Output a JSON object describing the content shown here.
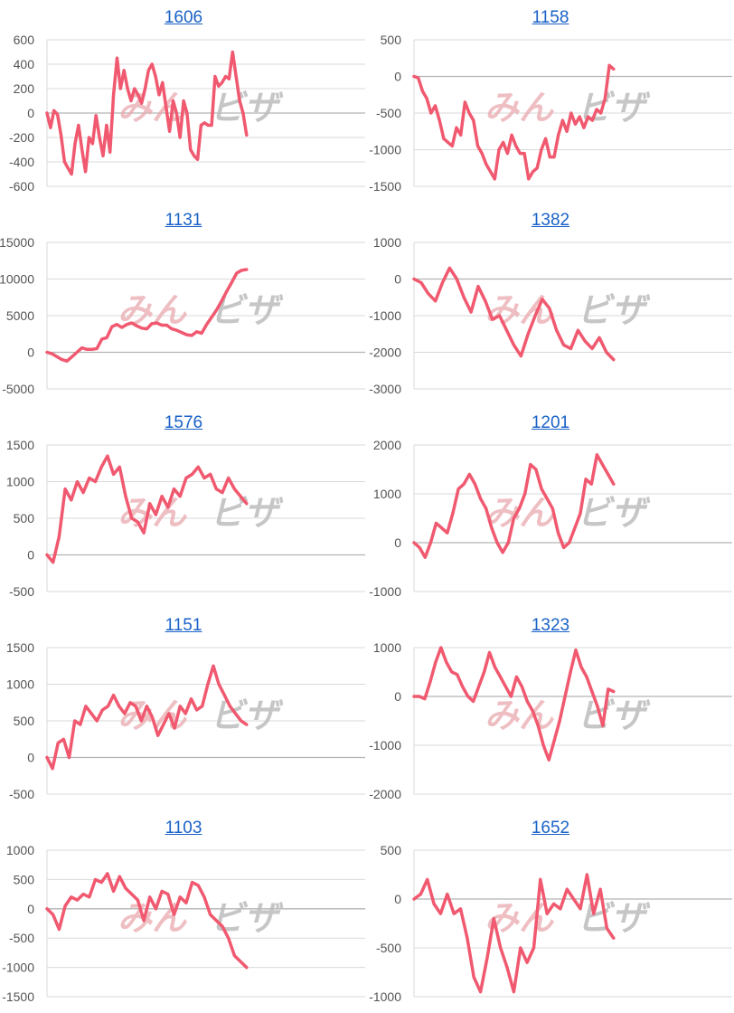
{
  "watermark": {
    "part1": "みん",
    "part2": "ビザ"
  },
  "colors": {
    "series": "#f0596f",
    "grid": "#d9d9d9",
    "zero": "#b3b3b3",
    "title": "#1a62c7",
    "tick": "#555555"
  },
  "chart_data": [
    {
      "type": "line",
      "title": "1606",
      "yticks": [
        600,
        400,
        200,
        0,
        -200,
        -400,
        -600
      ],
      "ylim": [
        -600,
        600
      ],
      "x_extent": 96,
      "values": [
        0,
        -120,
        20,
        -10,
        -180,
        -400,
        -450,
        -500,
        -250,
        -100,
        -300,
        -480,
        -200,
        -250,
        -20,
        -200,
        -350,
        -100,
        -320,
        150,
        450,
        200,
        350,
        200,
        100,
        200,
        150,
        80,
        200,
        350,
        400,
        300,
        150,
        250,
        50,
        -150,
        100,
        0,
        -200,
        100,
        0,
        -300,
        -350,
        -380,
        -100,
        -80,
        -100,
        -100,
        300,
        220,
        250,
        300,
        280,
        500,
        300,
        100,
        0,
        -180
      ]
    },
    {
      "type": "line",
      "title": "1158",
      "yticks": [
        500,
        0,
        -500,
        -1000,
        -1500
      ],
      "ylim": [
        -1500,
        500
      ],
      "x_extent": 96,
      "values": [
        0,
        -20,
        -200,
        -300,
        -500,
        -400,
        -600,
        -850,
        -900,
        -950,
        -700,
        -800,
        -350,
        -500,
        -600,
        -950,
        -1050,
        -1200,
        -1300,
        -1400,
        -1000,
        -900,
        -1050,
        -800,
        -950,
        -1050,
        -1050,
        -1400,
        -1300,
        -1250,
        -1000,
        -850,
        -1100,
        -1100,
        -800,
        -600,
        -750,
        -500,
        -650,
        -550,
        -700,
        -550,
        -600,
        -450,
        -500,
        -300,
        150,
        100
      ]
    },
    {
      "type": "line",
      "title": "1131",
      "yticks": [
        15000,
        10000,
        5000,
        0,
        -5000
      ],
      "ylim": [
        -5000,
        15000
      ],
      "x_extent": 96,
      "values": [
        0,
        -200,
        -600,
        -1000,
        -1200,
        -600,
        0,
        600,
        400,
        400,
        500,
        1800,
        2000,
        3500,
        3800,
        3400,
        3800,
        4000,
        3600,
        3300,
        3200,
        3900,
        4000,
        3700,
        3700,
        3200,
        3000,
        2700,
        2400,
        2300,
        2800,
        2600,
        3800,
        4800,
        5800,
        7000,
        8300,
        9500,
        10800,
        11200,
        11300
      ]
    },
    {
      "type": "line",
      "title": "1382",
      "yticks": [
        1000,
        0,
        -1000,
        -2000,
        -3000
      ],
      "ylim": [
        -3000,
        1000
      ],
      "x_extent": 96,
      "values": [
        0,
        -100,
        -400,
        -600,
        -100,
        300,
        0,
        -500,
        -900,
        -200,
        -600,
        -1100,
        -1000,
        -1400,
        -1800,
        -2100,
        -1500,
        -1000,
        -550,
        -800,
        -1400,
        -1800,
        -1900,
        -1400,
        -1700,
        -1900,
        -1600,
        -2000,
        -2200
      ]
    },
    {
      "type": "line",
      "title": "1576",
      "yticks": [
        1500,
        1000,
        500,
        0,
        -500
      ],
      "ylim": [
        -500,
        1500
      ],
      "x_extent": 96,
      "values": [
        0,
        -100,
        250,
        900,
        750,
        1000,
        850,
        1050,
        1000,
        1200,
        1350,
        1100,
        1200,
        800,
        500,
        450,
        300,
        700,
        550,
        800,
        650,
        900,
        800,
        1050,
        1100,
        1200,
        1050,
        1100,
        900,
        850,
        1050,
        900,
        800,
        700
      ]
    },
    {
      "type": "line",
      "title": "1201",
      "yticks": [
        2000,
        1000,
        0,
        -1000
      ],
      "ylim": [
        -1000,
        2000
      ],
      "x_extent": 96,
      "values": [
        0,
        -100,
        -300,
        0,
        400,
        300,
        200,
        600,
        1100,
        1200,
        1400,
        1200,
        900,
        700,
        300,
        0,
        -200,
        0,
        500,
        700,
        1000,
        1600,
        1500,
        1100,
        900,
        700,
        200,
        -100,
        0,
        300,
        600,
        1300,
        1200,
        1800,
        1600,
        1400,
        1200
      ]
    },
    {
      "type": "line",
      "title": "1151",
      "yticks": [
        1500,
        1000,
        500,
        0,
        -500
      ],
      "ylim": [
        -500,
        1500
      ],
      "x_extent": 96,
      "values": [
        0,
        -150,
        200,
        250,
        0,
        500,
        450,
        700,
        600,
        500,
        650,
        700,
        850,
        700,
        600,
        750,
        700,
        500,
        700,
        550,
        300,
        450,
        600,
        400,
        700,
        600,
        800,
        650,
        700,
        1000,
        1250,
        1000,
        850,
        700,
        600,
        500,
        450
      ]
    },
    {
      "type": "line",
      "title": "1323",
      "yticks": [
        1000,
        0,
        -1000,
        -2000
      ],
      "ylim": [
        -2000,
        1000
      ],
      "x_extent": 96,
      "values": [
        0,
        0,
        -50,
        300,
        700,
        1000,
        700,
        500,
        450,
        200,
        0,
        -100,
        200,
        500,
        900,
        600,
        400,
        200,
        0,
        400,
        200,
        -100,
        -300,
        -600,
        -1000,
        -1300,
        -900,
        -500,
        0,
        500,
        950,
        600,
        400,
        100,
        -200,
        -600,
        150,
        100
      ]
    },
    {
      "type": "line",
      "title": "1103",
      "yticks": [
        1000,
        500,
        0,
        -500,
        -1000,
        -1500
      ],
      "ylim": [
        -1500,
        1000
      ],
      "x_extent": 96,
      "values": [
        0,
        -100,
        -350,
        50,
        200,
        150,
        250,
        200,
        500,
        450,
        600,
        300,
        550,
        350,
        250,
        150,
        -200,
        200,
        0,
        300,
        250,
        -100,
        200,
        100,
        450,
        400,
        200,
        -100,
        -200,
        -300,
        -500,
        -800,
        -900,
        -1000
      ]
    },
    {
      "type": "line",
      "title": "1652",
      "yticks": [
        500,
        0,
        -500,
        -1000
      ],
      "ylim": [
        -1000,
        500
      ],
      "x_extent": 96,
      "values": [
        0,
        50,
        200,
        -50,
        -150,
        50,
        -150,
        -100,
        -400,
        -800,
        -950,
        -600,
        -200,
        -500,
        -700,
        -950,
        -500,
        -650,
        -500,
        200,
        -150,
        -50,
        -100,
        100,
        0,
        -100,
        250,
        -150,
        100,
        -300,
        -400
      ]
    }
  ]
}
